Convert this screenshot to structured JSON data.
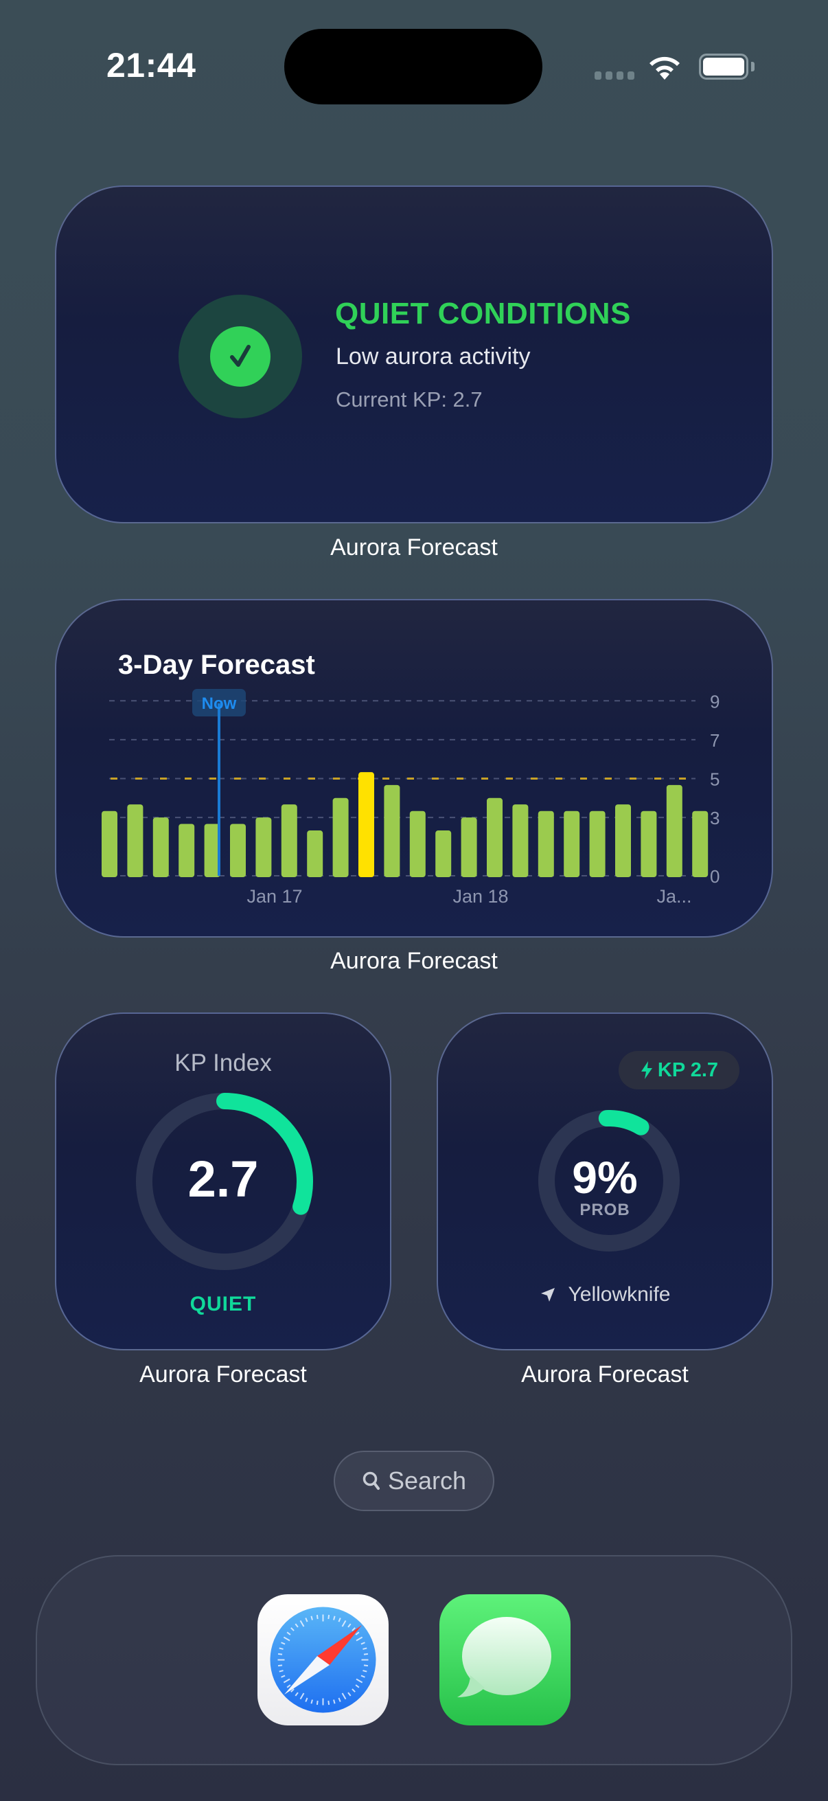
{
  "status_bar": {
    "time": "21:44",
    "signal_icon": "cellular-signal-icon",
    "wifi_icon": "wifi-icon",
    "battery_icon": "battery-full-icon"
  },
  "widgets": {
    "status": {
      "label": "Aurora Forecast",
      "icon": "checkmark-circle-icon",
      "title": "QUIET CONDITIONS",
      "subtitle": "Low aurora activity",
      "current_kp": "Current KP: 2.7",
      "accent": "#30d158"
    },
    "forecast": {
      "label": "Aurora Forecast",
      "title": "3-Day Forecast",
      "now_label": "Now",
      "x_labels": [
        "Jan 17",
        "Jan 18",
        "Ja..."
      ],
      "y_labels": [
        "9",
        "7",
        "5",
        "3",
        "0"
      ]
    },
    "kp_index": {
      "label": "Aurora Forecast",
      "title": "KP Index",
      "value": "2.7",
      "status": "QUIET",
      "accent": "#10d99a"
    },
    "probability": {
      "label": "Aurora Forecast",
      "kp_pill": "KP 2.7",
      "kp_pill_icon": "bolt-icon",
      "value": "9%",
      "value_label": "PROB",
      "location_icon": "location-arrow-icon",
      "location": "Yellowknife",
      "progress_percent": 9
    }
  },
  "search": {
    "label": "Search",
    "icon": "search-icon"
  },
  "dock": {
    "apps": [
      {
        "name": "Safari",
        "icon": "safari-compass-icon"
      },
      {
        "name": "Messages",
        "icon": "messages-bubble-icon"
      }
    ]
  },
  "chart_data": {
    "type": "bar",
    "title": "3-Day Forecast",
    "xlabel": "",
    "ylabel": "",
    "ylim": [
      0,
      9
    ],
    "y_ticks": [
      0,
      3,
      5,
      7,
      9
    ],
    "x_tick_labels": [
      "Jan 17",
      "Jan 18",
      "Ja..."
    ],
    "grid": true,
    "threshold_line": {
      "value": 5,
      "color": "#c9a227",
      "style": "dashed"
    },
    "now_marker_index": 4,
    "categories": [
      "1",
      "2",
      "3",
      "4",
      "5",
      "6",
      "7",
      "8",
      "9",
      "10",
      "11",
      "12",
      "13",
      "14",
      "15",
      "16",
      "17",
      "18",
      "19",
      "20",
      "21",
      "22",
      "23",
      "24"
    ],
    "values": [
      3.33,
      3.67,
      3.0,
      2.67,
      2.67,
      2.67,
      3.0,
      3.67,
      2.33,
      4.0,
      5.33,
      4.67,
      3.33,
      2.33,
      3.0,
      4.0,
      3.67,
      3.33,
      3.33,
      3.33,
      3.67,
      3.33,
      4.67,
      3.33
    ],
    "colors": {
      "normal": "#9bcb4e",
      "highlight": "#ffe100",
      "now_line": "#1a7bd4"
    },
    "highlight_index": 10
  }
}
